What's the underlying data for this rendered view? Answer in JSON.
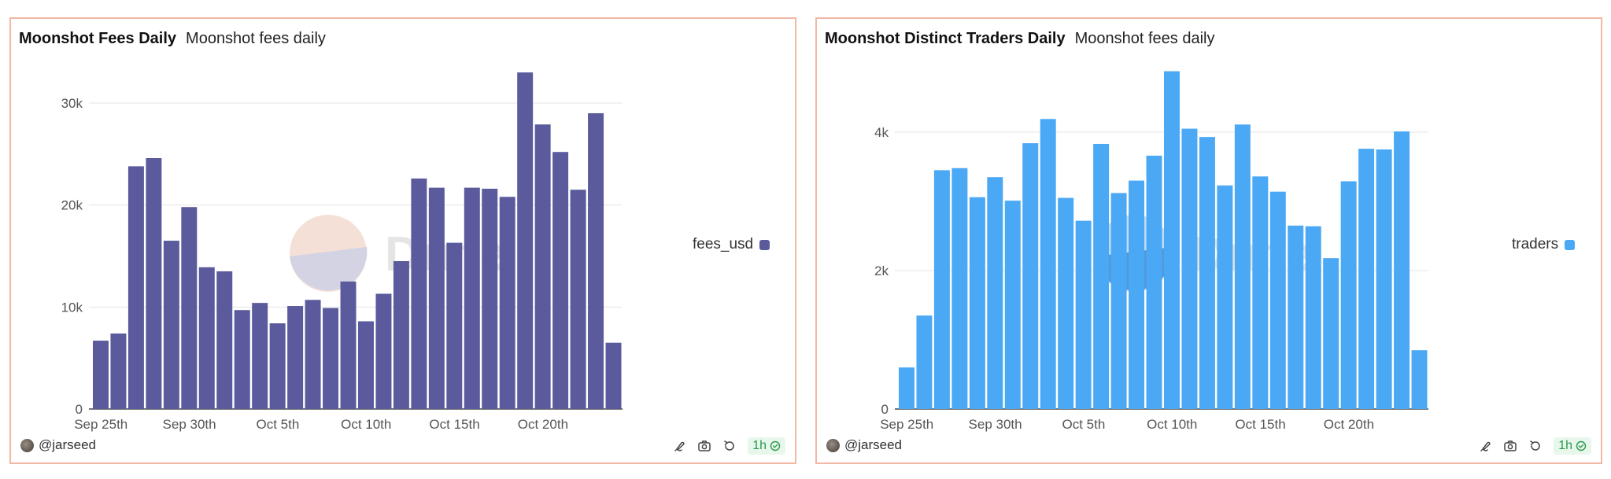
{
  "panels": [
    {
      "title": "Moonshot Fees Daily",
      "subtitle": "Moonshot fees daily",
      "author": "@jarseed",
      "refresh_label": "1h",
      "watermark": "Dune"
    },
    {
      "title": "Moonshot Distinct Traders Daily",
      "subtitle": "Moonshot fees daily",
      "author": "@jarseed",
      "refresh_label": "1h",
      "watermark": "Dune"
    }
  ],
  "colors": {
    "fees": "#5a5a9c",
    "traders": "#4aa8f5",
    "border": "#f2b8a4",
    "badge": "#2b9a4a"
  },
  "icons": [
    "edit-chart-icon",
    "camera-icon",
    "refresh-icon",
    "check-circle-icon"
  ],
  "chart_data": [
    {
      "type": "bar",
      "series": [
        {
          "name": "fees_usd",
          "values": [
            6700,
            7400,
            23800,
            24600,
            16500,
            19800,
            13900,
            13500,
            9700,
            10400,
            8400,
            10100,
            10700,
            9900,
            12500,
            8600,
            11300,
            14500,
            22600,
            21700,
            16300,
            21700,
            21600,
            20800,
            33000,
            27900,
            25200,
            21500,
            29000,
            6500
          ]
        }
      ],
      "x_tick_labels": [
        "Sep 25th",
        "Sep 30th",
        "Oct 5th",
        "Oct 10th",
        "Oct 15th",
        "Oct 20th"
      ],
      "y_tick_labels": [
        "0",
        "10k",
        "20k",
        "30k"
      ],
      "ylim": [
        0,
        30000
      ],
      "grid": true,
      "legend_position": "right"
    },
    {
      "type": "bar",
      "series": [
        {
          "name": "traders",
          "values": [
            600,
            1350,
            3450,
            3480,
            3060,
            3350,
            3010,
            3840,
            4190,
            3050,
            2720,
            3830,
            3120,
            3300,
            3660,
            4880,
            4050,
            3930,
            3230,
            4110,
            3360,
            3140,
            2650,
            2640,
            2180,
            3290,
            3760,
            3750,
            4010,
            850
          ]
        }
      ],
      "x_tick_labels": [
        "Sep 25th",
        "Sep 30th",
        "Oct 5th",
        "Oct 10th",
        "Oct 15th",
        "Oct 20th"
      ],
      "y_tick_labels": [
        "0",
        "2k",
        "4k"
      ],
      "ylim": [
        0,
        4000
      ],
      "grid": true,
      "legend_position": "right"
    }
  ]
}
